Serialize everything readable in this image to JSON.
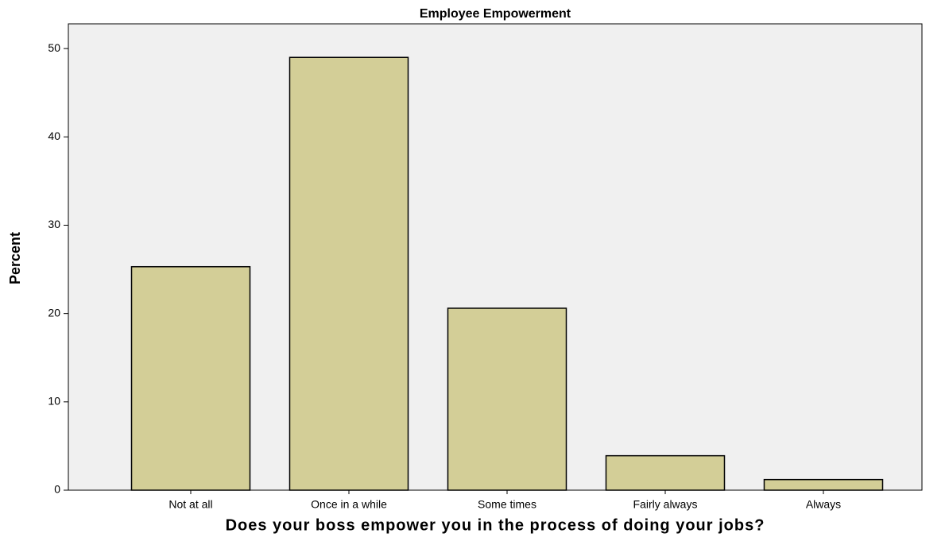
{
  "chart_data": {
    "type": "bar",
    "title": "Employee Empowerment",
    "x_label": "Does your boss empower you in the process of doing your jobs?",
    "y_label": "Percent",
    "categories": [
      "Not at all",
      "Once in a while",
      "Some times",
      "Fairly always",
      "Always"
    ],
    "values": [
      25.3,
      49.0,
      20.6,
      3.9,
      1.2
    ],
    "color": "#d3ce97",
    "ylim": [
      0,
      52.8
    ],
    "yticks": [
      0,
      10,
      20,
      30,
      40,
      50
    ],
    "grid": false
  }
}
